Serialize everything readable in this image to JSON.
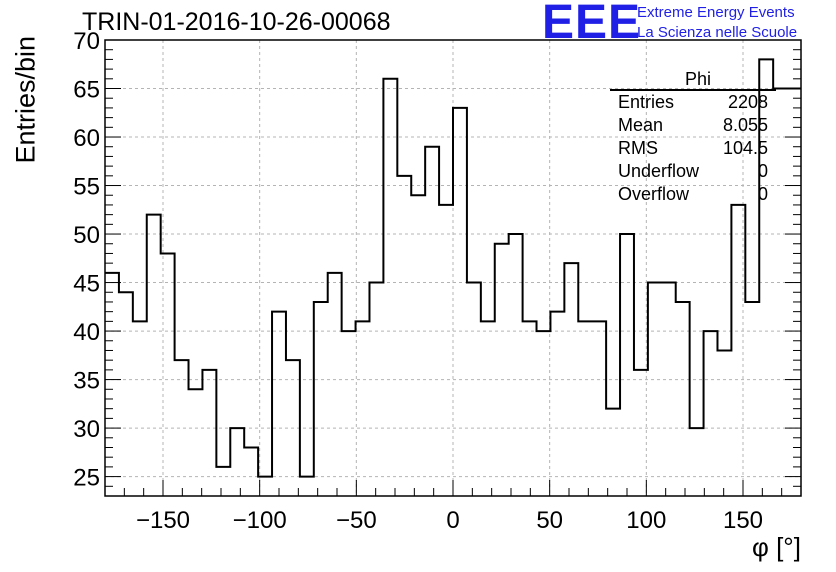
{
  "title": "TRIN-01-2016-10-26-00068",
  "logo": {
    "mark": "EEE",
    "line1": "Extreme Energy Events",
    "line2": "La Scienza nelle Scuole",
    "color": "#1f1fe6"
  },
  "stats": {
    "title": "Phi",
    "rows": [
      {
        "label": "Entries",
        "value": "2208"
      },
      {
        "label": "Mean",
        "value": "8.055"
      },
      {
        "label": "RMS",
        "value": "104.5"
      },
      {
        "label": "Underflow",
        "value": "0"
      },
      {
        "label": "Overflow",
        "value": "0"
      }
    ]
  },
  "chart_data": {
    "type": "histogram",
    "title": "TRIN-01-2016-10-26-00068",
    "xlabel": "φ [°]",
    "ylabel": "Entries/bin",
    "xlim": [
      -180,
      180
    ],
    "ylim": [
      23,
      70
    ],
    "bin_width": 7.2,
    "x_ticks": [
      -150,
      -100,
      -50,
      0,
      50,
      100,
      150
    ],
    "x_tick_labels": [
      "−150",
      "−100",
      "−50",
      "0",
      "50",
      "100",
      "150"
    ],
    "y_ticks": [
      25,
      30,
      35,
      40,
      45,
      50,
      55,
      60,
      65,
      70
    ],
    "grid": true,
    "line_color": "#000000",
    "values": [
      46,
      44,
      41,
      52,
      48,
      37,
      34,
      36,
      26,
      30,
      28,
      25,
      42,
      37,
      25,
      43,
      46,
      40,
      41,
      45,
      66,
      56,
      54,
      59,
      53,
      63,
      45,
      41,
      49,
      50,
      41,
      40,
      42,
      47,
      41,
      41,
      32,
      50,
      36,
      45,
      45,
      43,
      30,
      40,
      38,
      53,
      43,
      68,
      65,
      65
    ]
  }
}
